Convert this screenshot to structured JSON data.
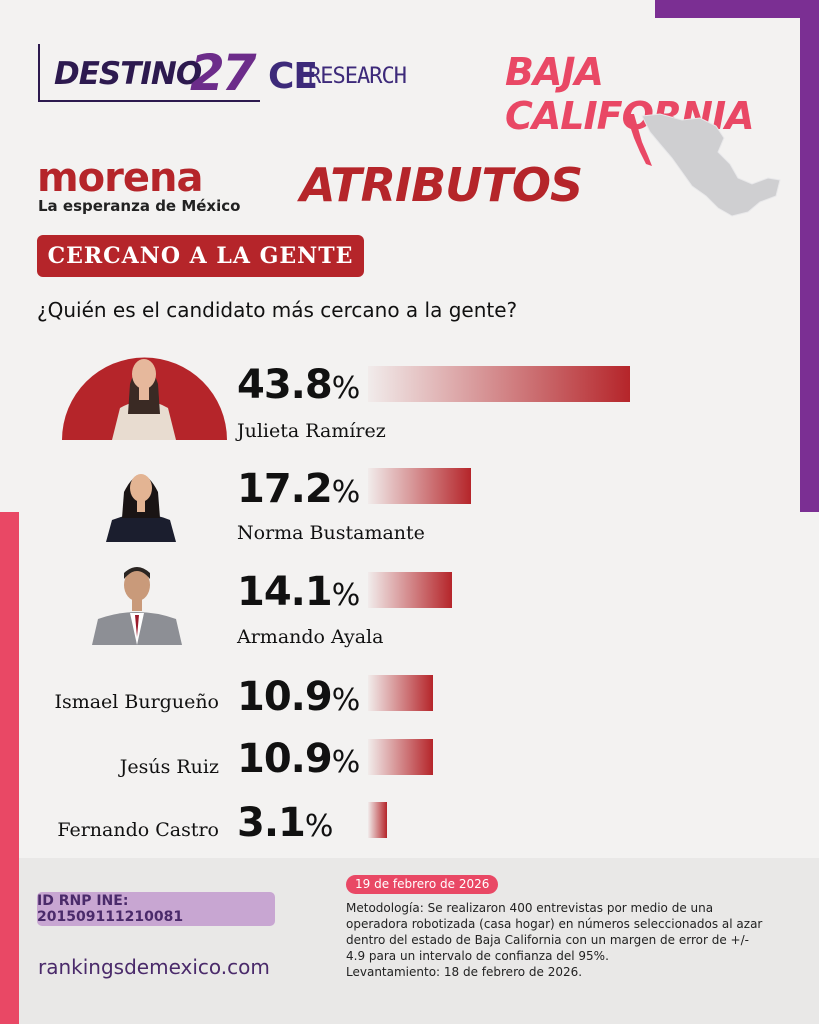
{
  "brand": {
    "destino_text": "DESTINO",
    "destino_num": "27",
    "ce": "CE",
    "research": "RESEARCH",
    "region": "BAJA CALIFORNIA",
    "morena_name": "morena",
    "morena_tagline": "La esperanza de México"
  },
  "heading": "ATRIBUTOS",
  "attribute_label": "CERCANO A LA GENTE",
  "question": "¿Quién es el candidato más cercano a la gente?",
  "percent_symbol": "%",
  "colors": {
    "accent_red": "#b5252a",
    "pink": "#e94865",
    "purple": "#7b2f93",
    "dark_purple": "#2d1a4f"
  },
  "chart_data": {
    "type": "bar",
    "orientation": "horizontal",
    "categories": [
      "Julieta Ramírez",
      "Norma Bustamante",
      "Armando Ayala",
      "Ismael Burgueño",
      "Jesús Ruiz",
      "Fernando Castro"
    ],
    "values": [
      43.8,
      17.2,
      14.1,
      10.9,
      10.9,
      3.1
    ],
    "value_labels": [
      "43.8",
      "17.2",
      "14.1",
      "10.9",
      "10.9",
      "3.1"
    ],
    "unit": "%"
  },
  "footer": {
    "date": "19 de febrero de 2026",
    "methodology": "Metodología: Se realizaron 400 entrevistas por medio de una operadora robotizada (casa hogar) en números seleccionados al azar dentro del estado de Baja California con un margen de error de +/- 4.9 para un intervalo de confianza del 95%.",
    "fieldwork": "Levantamiento: 18 de febrero de 2026.",
    "rnp_id": "ID RNP INE: 201509111210081",
    "website": "rankingsdemexico.com"
  }
}
